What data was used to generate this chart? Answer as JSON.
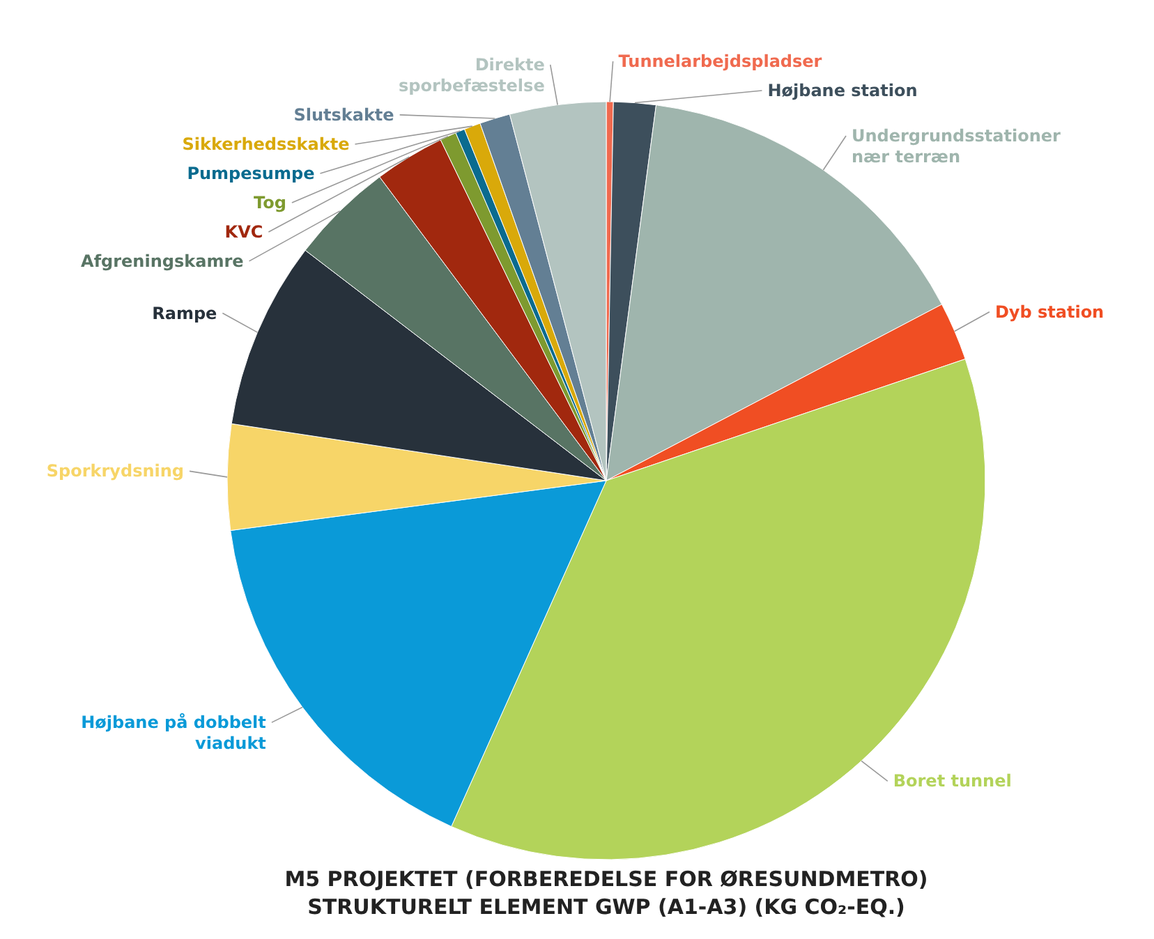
{
  "chart_data": {
    "type": "pie",
    "title": "M5 PROJEKTET (FORBEREDELSE FOR ØRESUNDMETRO)\nSTRUKTURELT ELEMENT GWP (A1-A3) (KG CO₂-EQ.)",
    "categories": [
      "Tunnelarbejdspladser",
      "Højbane station",
      "Undergrundsstationer nær terræn",
      "Dyb station",
      "Boret tunnel",
      "Højbane på dobbelt viadukt",
      "Sporkrydsning",
      "Rampe",
      "Afgreningskamre",
      "KVC",
      "Tog",
      "Pumpesumpe",
      "Sikkerhedsskakte",
      "Slutskakte",
      "Direkte sporbefæstelse"
    ],
    "values": [
      0.3,
      1.8,
      15.2,
      2.5,
      36.9,
      16.2,
      4.5,
      8.0,
      4.4,
      3.0,
      0.7,
      0.4,
      0.7,
      1.3,
      4.1
    ],
    "colors": [
      "#f06a4f",
      "#3d4f5c",
      "#9fb5ad",
      "#f04e23",
      "#b3d35a",
      "#0a9ad8",
      "#f7d568",
      "#27313b",
      "#587464",
      "#a1280e",
      "#7e9a2f",
      "#0a6b8f",
      "#d9a90a",
      "#637f94",
      "#b3c4c0"
    ]
  }
}
